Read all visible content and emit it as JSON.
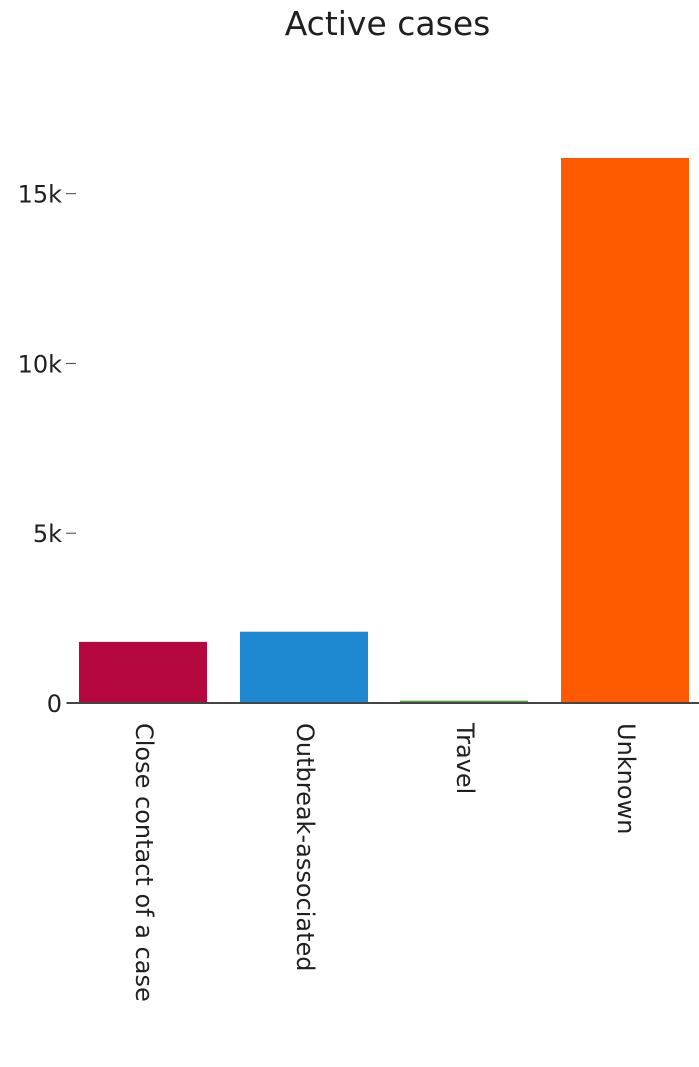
{
  "chart_data": {
    "type": "bar",
    "title": "Active cases",
    "xlabel": "",
    "ylabel": "",
    "categories": [
      "Close contact of a case",
      "Outbreak-associated",
      "Travel",
      "Unknown"
    ],
    "values": [
      1800,
      2100,
      70,
      16050
    ],
    "colors": [
      "#b5083f",
      "#1e88d0",
      "#3dc00f",
      "#ff5a00"
    ],
    "ylim": [
      0,
      17500
    ],
    "yticks": [
      0,
      5000,
      10000,
      15000
    ],
    "ytick_labels": [
      "0",
      "5k",
      "10k",
      "15k"
    ],
    "grid": false,
    "legend": "none"
  }
}
